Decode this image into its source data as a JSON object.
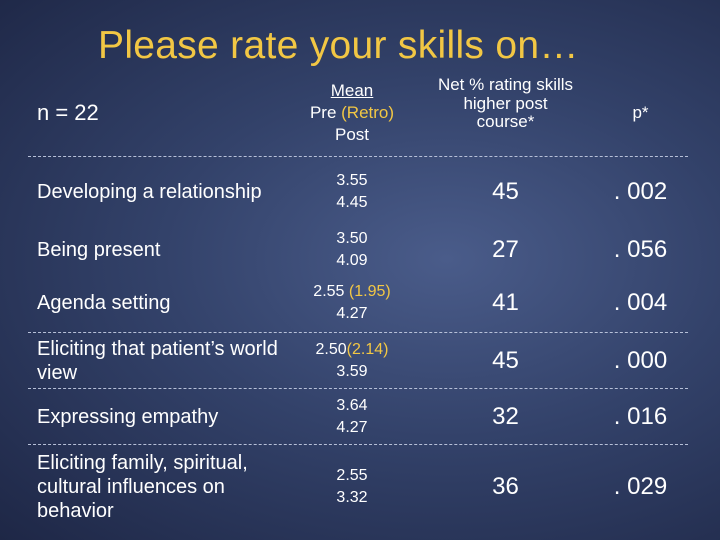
{
  "title": "Please rate your skills on…",
  "header": {
    "n_label": "n = 22",
    "mean_line1": "Mean",
    "mean_line2_a": "Pre ",
    "mean_line2_b": "(Retro)",
    "mean_line3": "Post",
    "net_line1": "Net % rating skills",
    "net_line2": "higher post",
    "net_line3": "course*",
    "p_label": "p*"
  },
  "rows": [
    {
      "skill": "Developing a relationship",
      "pre": "3.55",
      "retro": "",
      "post": "4.45",
      "net": "45",
      "p": ". 002"
    },
    {
      "skill": "Being present",
      "pre": "3.50",
      "retro": "",
      "post": "4.09",
      "net": "27",
      "p": ". 056"
    },
    {
      "skill": "Agenda setting",
      "pre": "2.55 ",
      "retro": "(1.95)",
      "post": "4.27",
      "net": "41",
      "p": ". 004"
    },
    {
      "skill": "Eliciting  that patient’s world view",
      "pre": "2.50",
      "retro": "(2.14)",
      "post": "3.59",
      "net": "45",
      "p": ". 000"
    },
    {
      "skill": "Expressing empathy",
      "pre": "3.64",
      "retro": "",
      "post": "4.27",
      "net": "32",
      "p": ". 016"
    },
    {
      "skill": "Eliciting family, spiritual, cultural influences on behavior",
      "pre": "2.55",
      "retro": "",
      "post": "3.32",
      "net": "36",
      "p": ". 029"
    }
  ]
}
